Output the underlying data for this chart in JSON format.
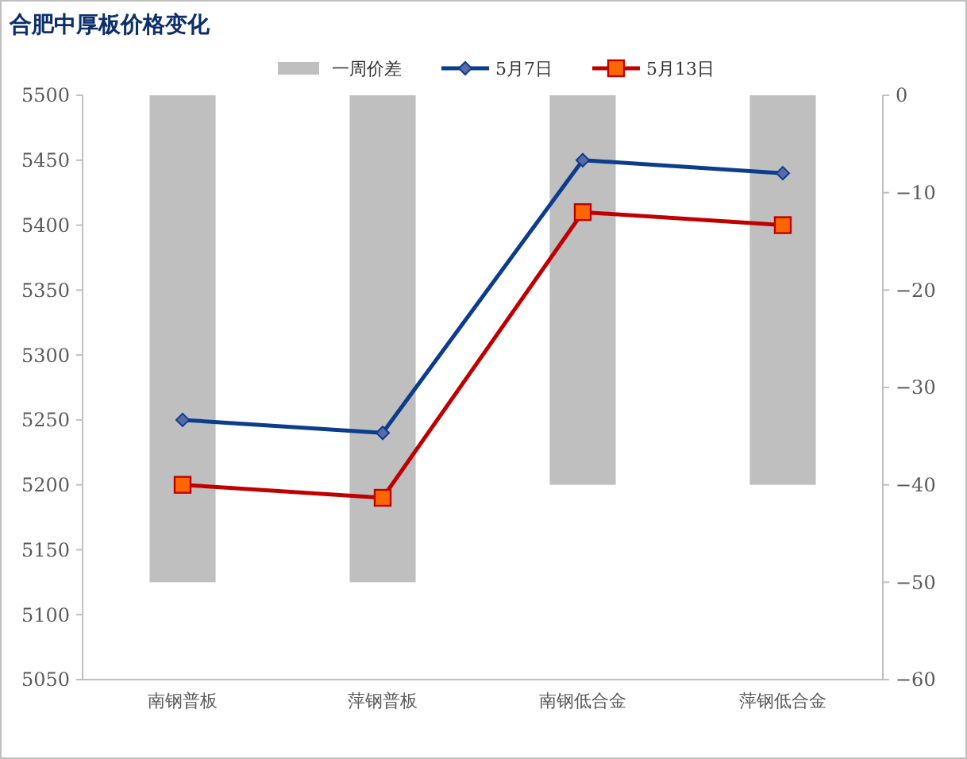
{
  "chart_data": {
    "type": "bar",
    "title": "合肥中厚板价格变化",
    "categories": [
      "南钢普板",
      "萍钢普板",
      "南钢低合金",
      "萍钢低合金"
    ],
    "series": [
      {
        "name": "一周价差",
        "axis": "y2",
        "color": "#bfbfbf",
        "values": [
          -50,
          -50,
          -40,
          -40
        ]
      },
      {
        "name": "5月7日",
        "type": "line",
        "color": "#0c3c8c",
        "marker": "diamond",
        "values": [
          5250,
          5240,
          5450,
          5440
        ]
      },
      {
        "name": "5月13日",
        "type": "line",
        "color": "#c00000",
        "marker": "square",
        "values": [
          5200,
          5190,
          5410,
          5400
        ]
      }
    ],
    "ylim": [
      5050,
      5500
    ],
    "yticks": [
      5050,
      5100,
      5150,
      5200,
      5250,
      5300,
      5350,
      5400,
      5450,
      5500
    ],
    "y2lim": [
      -60,
      0
    ],
    "y2ticks": [
      -60,
      -50,
      -40,
      -30,
      -20,
      -10,
      0
    ],
    "legend": "top",
    "grid": false
  }
}
